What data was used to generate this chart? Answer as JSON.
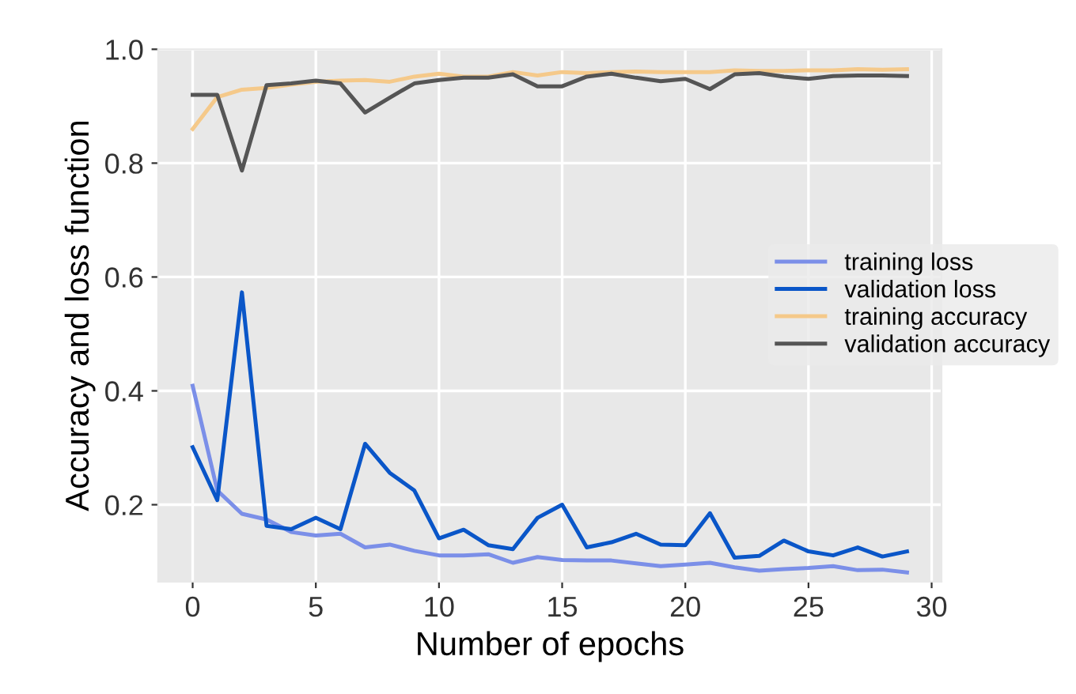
{
  "chart_data": {
    "type": "line",
    "xlabel": "Number of epochs",
    "ylabel": "Accuracy and loss function",
    "x": [
      0,
      1,
      2,
      3,
      4,
      5,
      6,
      7,
      8,
      9,
      10,
      11,
      12,
      13,
      14,
      15,
      16,
      17,
      18,
      19,
      20,
      21,
      22,
      23,
      24,
      25,
      26,
      27,
      28,
      29
    ],
    "series": [
      {
        "name": "training loss",
        "color": "#7b8fe8",
        "values": [
          0.409,
          0.225,
          0.184,
          0.174,
          0.152,
          0.146,
          0.149,
          0.125,
          0.13,
          0.119,
          0.111,
          0.111,
          0.113,
          0.098,
          0.108,
          0.103,
          0.102,
          0.102,
          0.097,
          0.092,
          0.095,
          0.098,
          0.09,
          0.084,
          0.087,
          0.089,
          0.092,
          0.085,
          0.086,
          0.081
        ]
      },
      {
        "name": "validation loss",
        "color": "#0a56c8",
        "values": [
          0.301,
          0.208,
          0.573,
          0.163,
          0.157,
          0.177,
          0.157,
          0.307,
          0.256,
          0.225,
          0.141,
          0.156,
          0.129,
          0.122,
          0.177,
          0.2,
          0.125,
          0.134,
          0.149,
          0.13,
          0.129,
          0.185,
          0.107,
          0.11,
          0.137,
          0.118,
          0.111,
          0.125,
          0.109,
          0.118
        ]
      },
      {
        "name": "training accuracy",
        "color": "#f5c98a",
        "values": [
          0.86,
          0.916,
          0.929,
          0.932,
          0.938,
          0.943,
          0.945,
          0.946,
          0.943,
          0.952,
          0.957,
          0.952,
          0.952,
          0.96,
          0.954,
          0.96,
          0.958,
          0.96,
          0.961,
          0.96,
          0.96,
          0.96,
          0.963,
          0.962,
          0.962,
          0.963,
          0.963,
          0.965,
          0.964,
          0.965
        ]
      },
      {
        "name": "validation accuracy",
        "color": "#555555",
        "values": [
          0.92,
          0.92,
          0.787,
          0.937,
          0.94,
          0.945,
          0.94,
          0.889,
          0.915,
          0.94,
          0.946,
          0.95,
          0.95,
          0.956,
          0.935,
          0.935,
          0.952,
          0.957,
          0.95,
          0.944,
          0.948,
          0.93,
          0.956,
          0.958,
          0.952,
          0.948,
          0.953,
          0.954,
          0.954,
          0.953
        ]
      }
    ],
    "xlim": [
      -1.4,
      30.4
    ],
    "ylim": [
      0.065,
      1.0
    ],
    "xticks": [
      0,
      5,
      10,
      15,
      20,
      25,
      30
    ],
    "yticks": [
      0.2,
      0.4,
      0.6,
      0.8,
      {
        "value": 1.0,
        "label": "1.0"
      }
    ],
    "grid": true,
    "legend": "right",
    "marker": "none",
    "line_style": "solid"
  }
}
